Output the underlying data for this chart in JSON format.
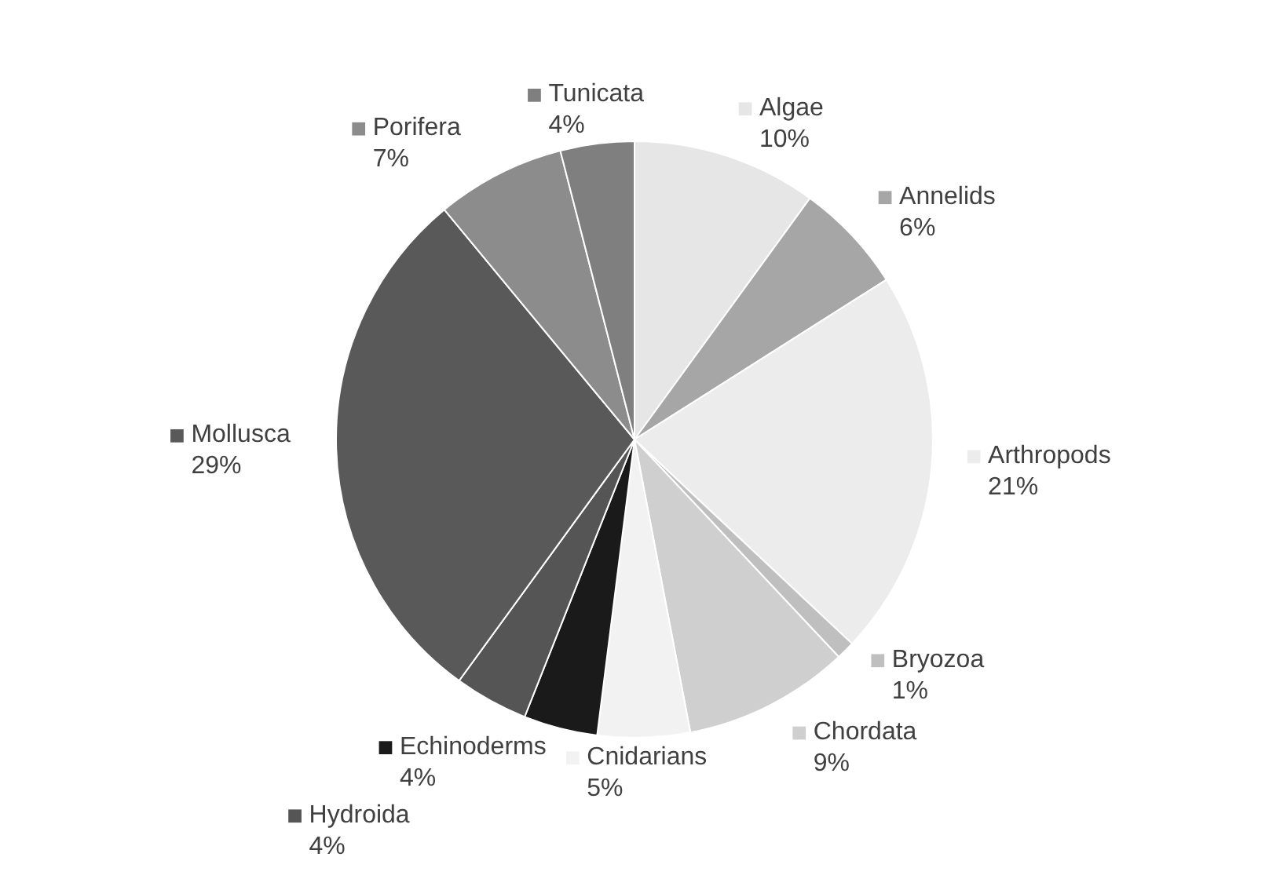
{
  "chart_data": {
    "type": "pie",
    "categories": [
      "Algae",
      "Annelids",
      "Arthropods",
      "Bryozoa",
      "Chordata",
      "Cnidarians",
      "Echinoderms",
      "Hydroida",
      "Mollusca",
      "Porifera",
      "Tunicata"
    ],
    "values": [
      10,
      6,
      21,
      1,
      9,
      5,
      4,
      4,
      29,
      7,
      4
    ],
    "value_labels": [
      "10%",
      "6%",
      "21%",
      "1%",
      "9%",
      "5%",
      "4%",
      "4%",
      "29%",
      "7%",
      "4%"
    ],
    "colors": [
      "#e6e6e6",
      "#a6a6a6",
      "#ececec",
      "#bfbfbf",
      "#cfcfcf",
      "#f2f2f2",
      "#1a1a1a",
      "#555555",
      "#595959",
      "#8c8c8c",
      "#7f7f7f"
    ],
    "legend": "right"
  }
}
